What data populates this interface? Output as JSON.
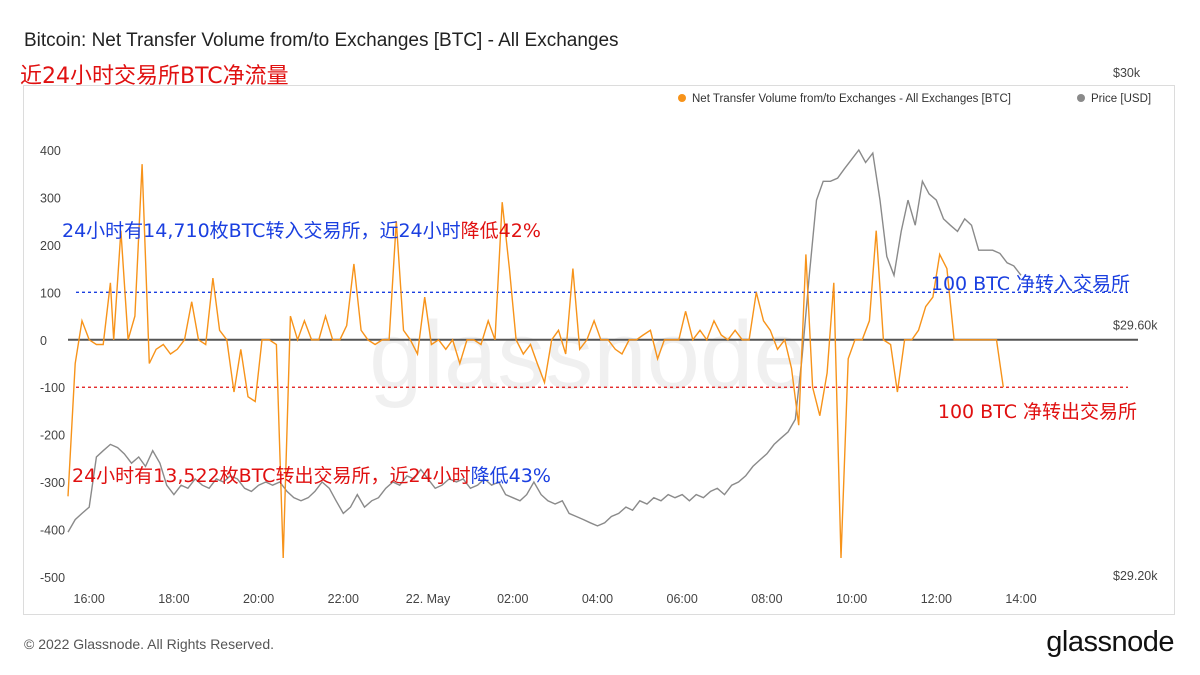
{
  "header": {
    "title": "Bitcoin: Net Transfer Volume from/to Exchanges [BTC] - All Exchanges",
    "subtitle": "近24小时交易所BTC净流量"
  },
  "footer": {
    "copyright": "© 2022 Glassnode. All Rights Reserved.",
    "brand": "glassnode"
  },
  "watermark": "glassnode",
  "colors": {
    "volume": "#f7931a",
    "price": "#8a8a8a",
    "zero_line": "#555555",
    "inflow_line": "#1a3fe0",
    "outflow_line": "#e01010",
    "annotation_blue": "#1a3fe0",
    "annotation_red": "#e01010"
  },
  "annotations": {
    "inflow": {
      "part1": "24小时有14,710枚BTC转入交易所，近24小时",
      "part2": "降低42%"
    },
    "outflow": {
      "part1": "24小时有13,522枚BTC转出交易所，近24小时",
      "part2": "降低43%"
    },
    "threshold_in": "100 BTC 净转入交易所",
    "threshold_out": "100 BTC 净转出交易所"
  },
  "chart_data": {
    "type": "line",
    "title": "Bitcoin: Net Transfer Volume from/to Exchanges [BTC] - All Exchanges",
    "x_tick_labels": [
      "16:00",
      "18:00",
      "20:00",
      "22:00",
      "22. May",
      "02:00",
      "04:00",
      "06:00",
      "08:00",
      "10:00",
      "12:00",
      "14:00"
    ],
    "x_tick_hours": [
      1,
      3,
      5,
      7,
      9,
      11,
      13,
      15,
      17,
      19,
      21,
      23
    ],
    "x_range_hours": [
      0.5,
      25.1
    ],
    "y_left": {
      "ticks": [
        400,
        300,
        200,
        100,
        0,
        -100,
        -200,
        -300,
        -400,
        -500
      ],
      "range": [
        -500,
        400
      ]
    },
    "y_right": {
      "ticks": [
        "$30k",
        "$29.60k",
        "$29.20k"
      ],
      "tick_values": [
        30000,
        29600,
        29200
      ],
      "range": [
        29200,
        29880
      ],
      "scale": "log"
    },
    "reference_lines": [
      {
        "name": "inflow_threshold",
        "y": 100,
        "label": "100 BTC 净转入交易所"
      },
      {
        "name": "outflow_threshold",
        "y": -100,
        "label": "100 BTC 净转出交易所"
      }
    ],
    "legend": {
      "placement": "top-right",
      "entries": [
        "Net Transfer Volume from/to Exchanges - All Exchanges [BTC]",
        "Price [USD]"
      ]
    },
    "series": [
      {
        "name": "Net Transfer Volume from/to Exchanges - All Exchanges [BTC]",
        "color": "#f7931a",
        "axis": "left",
        "points": [
          [
            0.5,
            -330
          ],
          [
            0.67,
            -50
          ],
          [
            0.83,
            40
          ],
          [
            1.0,
            0
          ],
          [
            1.17,
            -10
          ],
          [
            1.33,
            -10
          ],
          [
            1.5,
            120
          ],
          [
            1.58,
            0
          ],
          [
            1.75,
            230
          ],
          [
            1.92,
            0
          ],
          [
            2.08,
            50
          ],
          [
            2.25,
            370
          ],
          [
            2.42,
            -50
          ],
          [
            2.58,
            -20
          ],
          [
            2.75,
            -10
          ],
          [
            2.92,
            -30
          ],
          [
            3.08,
            -20
          ],
          [
            3.25,
            0
          ],
          [
            3.42,
            80
          ],
          [
            3.58,
            0
          ],
          [
            3.75,
            -10
          ],
          [
            3.92,
            130
          ],
          [
            4.08,
            20
          ],
          [
            4.25,
            0
          ],
          [
            4.42,
            -110
          ],
          [
            4.58,
            -20
          ],
          [
            4.75,
            -120
          ],
          [
            4.92,
            -130
          ],
          [
            5.08,
            0
          ],
          [
            5.25,
            0
          ],
          [
            5.42,
            -10
          ],
          [
            5.58,
            -460
          ],
          [
            5.75,
            50
          ],
          [
            5.92,
            0
          ],
          [
            6.08,
            40
          ],
          [
            6.25,
            0
          ],
          [
            6.42,
            0
          ],
          [
            6.58,
            50
          ],
          [
            6.75,
            0
          ],
          [
            6.92,
            0
          ],
          [
            7.08,
            30
          ],
          [
            7.25,
            160
          ],
          [
            7.42,
            20
          ],
          [
            7.58,
            0
          ],
          [
            7.75,
            -10
          ],
          [
            7.92,
            0
          ],
          [
            8.08,
            0
          ],
          [
            8.25,
            250
          ],
          [
            8.42,
            20
          ],
          [
            8.58,
            0
          ],
          [
            8.75,
            -30
          ],
          [
            8.92,
            90
          ],
          [
            9.08,
            -10
          ],
          [
            9.25,
            0
          ],
          [
            9.42,
            -20
          ],
          [
            9.58,
            0
          ],
          [
            9.75,
            -50
          ],
          [
            9.92,
            0
          ],
          [
            10.08,
            0
          ],
          [
            10.25,
            -10
          ],
          [
            10.42,
            40
          ],
          [
            10.58,
            0
          ],
          [
            10.75,
            290
          ],
          [
            10.92,
            150
          ],
          [
            11.08,
            0
          ],
          [
            11.25,
            -30
          ],
          [
            11.42,
            -10
          ],
          [
            11.58,
            -50
          ],
          [
            11.75,
            -90
          ],
          [
            11.92,
            0
          ],
          [
            12.08,
            20
          ],
          [
            12.25,
            -30
          ],
          [
            12.42,
            150
          ],
          [
            12.58,
            -20
          ],
          [
            12.75,
            0
          ],
          [
            12.92,
            40
          ],
          [
            13.08,
            0
          ],
          [
            13.25,
            0
          ],
          [
            13.42,
            -20
          ],
          [
            13.58,
            -30
          ],
          [
            13.75,
            0
          ],
          [
            13.92,
            0
          ],
          [
            14.08,
            10
          ],
          [
            14.25,
            20
          ],
          [
            14.42,
            -40
          ],
          [
            14.58,
            0
          ],
          [
            14.75,
            0
          ],
          [
            14.92,
            0
          ],
          [
            15.08,
            60
          ],
          [
            15.25,
            0
          ],
          [
            15.42,
            20
          ],
          [
            15.58,
            0
          ],
          [
            15.75,
            40
          ],
          [
            15.92,
            10
          ],
          [
            16.08,
            0
          ],
          [
            16.25,
            20
          ],
          [
            16.42,
            0
          ],
          [
            16.58,
            0
          ],
          [
            16.75,
            100
          ],
          [
            16.92,
            40
          ],
          [
            17.08,
            20
          ],
          [
            17.25,
            -20
          ],
          [
            17.42,
            0
          ],
          [
            17.58,
            -60
          ],
          [
            17.75,
            -180
          ],
          [
            17.92,
            180
          ],
          [
            18.08,
            -100
          ],
          [
            18.25,
            -160
          ],
          [
            18.42,
            -70
          ],
          [
            18.58,
            120
          ],
          [
            18.75,
            -460
          ],
          [
            18.92,
            -40
          ],
          [
            19.08,
            0
          ],
          [
            19.25,
            0
          ],
          [
            19.42,
            40
          ],
          [
            19.58,
            230
          ],
          [
            19.75,
            0
          ],
          [
            19.92,
            -10
          ],
          [
            20.08,
            -110
          ],
          [
            20.25,
            0
          ],
          [
            20.42,
            0
          ],
          [
            20.58,
            20
          ],
          [
            20.75,
            70
          ],
          [
            20.92,
            90
          ],
          [
            21.08,
            180
          ],
          [
            21.25,
            150
          ],
          [
            21.42,
            0
          ],
          [
            21.58,
            0
          ],
          [
            21.75,
            0
          ],
          [
            21.92,
            0
          ],
          [
            22.08,
            0
          ],
          [
            22.25,
            0
          ],
          [
            22.42,
            0
          ],
          [
            22.58,
            -100
          ]
        ]
      },
      {
        "name": "Price [USD]",
        "color": "#8a8a8a",
        "axis": "right",
        "points": [
          [
            0.5,
            29270
          ],
          [
            0.67,
            29290
          ],
          [
            0.83,
            29300
          ],
          [
            1.0,
            29310
          ],
          [
            1.17,
            29390
          ],
          [
            1.33,
            29400
          ],
          [
            1.5,
            29410
          ],
          [
            1.67,
            29405
          ],
          [
            1.83,
            29395
          ],
          [
            2.0,
            29380
          ],
          [
            2.17,
            29390
          ],
          [
            2.33,
            29375
          ],
          [
            2.5,
            29400
          ],
          [
            2.67,
            29380
          ],
          [
            2.83,
            29345
          ],
          [
            3.0,
            29330
          ],
          [
            3.17,
            29345
          ],
          [
            3.33,
            29340
          ],
          [
            3.5,
            29355
          ],
          [
            3.67,
            29345
          ],
          [
            3.83,
            29340
          ],
          [
            4.0,
            29355
          ],
          [
            4.17,
            29350
          ],
          [
            4.33,
            29360
          ],
          [
            4.5,
            29355
          ],
          [
            4.67,
            29340
          ],
          [
            4.83,
            29335
          ],
          [
            5.0,
            29345
          ],
          [
            5.17,
            29350
          ],
          [
            5.33,
            29345
          ],
          [
            5.5,
            29350
          ],
          [
            5.67,
            29335
          ],
          [
            5.83,
            29325
          ],
          [
            6.0,
            29320
          ],
          [
            6.17,
            29325
          ],
          [
            6.33,
            29335
          ],
          [
            6.5,
            29350
          ],
          [
            6.67,
            29340
          ],
          [
            6.83,
            29320
          ],
          [
            7.0,
            29300
          ],
          [
            7.17,
            29310
          ],
          [
            7.33,
            29330
          ],
          [
            7.5,
            29310
          ],
          [
            7.67,
            29320
          ],
          [
            7.83,
            29325
          ],
          [
            8.0,
            29340
          ],
          [
            8.17,
            29350
          ],
          [
            8.33,
            29345
          ],
          [
            8.5,
            29360
          ],
          [
            8.67,
            29355
          ],
          [
            8.83,
            29370
          ],
          [
            9.0,
            29355
          ],
          [
            9.17,
            29340
          ],
          [
            9.33,
            29345
          ],
          [
            9.5,
            29355
          ],
          [
            9.67,
            29350
          ],
          [
            9.83,
            29355
          ],
          [
            10.0,
            29340
          ],
          [
            10.17,
            29345
          ],
          [
            10.33,
            29355
          ],
          [
            10.5,
            29345
          ],
          [
            10.67,
            29350
          ],
          [
            10.83,
            29330
          ],
          [
            11.0,
            29325
          ],
          [
            11.17,
            29320
          ],
          [
            11.33,
            29330
          ],
          [
            11.5,
            29350
          ],
          [
            11.67,
            29330
          ],
          [
            11.83,
            29320
          ],
          [
            12.0,
            29315
          ],
          [
            12.17,
            29320
          ],
          [
            12.33,
            29300
          ],
          [
            12.5,
            29295
          ],
          [
            12.67,
            29290
          ],
          [
            12.83,
            29285
          ],
          [
            13.0,
            29280
          ],
          [
            13.17,
            29285
          ],
          [
            13.33,
            29295
          ],
          [
            13.5,
            29300
          ],
          [
            13.67,
            29310
          ],
          [
            13.83,
            29305
          ],
          [
            14.0,
            29320
          ],
          [
            14.17,
            29315
          ],
          [
            14.33,
            29325
          ],
          [
            14.5,
            29320
          ],
          [
            14.67,
            29330
          ],
          [
            14.83,
            29325
          ],
          [
            15.0,
            29330
          ],
          [
            15.17,
            29320
          ],
          [
            15.33,
            29330
          ],
          [
            15.5,
            29325
          ],
          [
            15.67,
            29335
          ],
          [
            15.83,
            29340
          ],
          [
            16.0,
            29330
          ],
          [
            16.17,
            29345
          ],
          [
            16.33,
            29350
          ],
          [
            16.5,
            29360
          ],
          [
            16.67,
            29375
          ],
          [
            16.83,
            29385
          ],
          [
            17.0,
            29395
          ],
          [
            17.17,
            29410
          ],
          [
            17.33,
            29420
          ],
          [
            17.5,
            29430
          ],
          [
            17.67,
            29450
          ],
          [
            17.83,
            29550
          ],
          [
            18.0,
            29680
          ],
          [
            18.17,
            29800
          ],
          [
            18.33,
            29830
          ],
          [
            18.5,
            29830
          ],
          [
            18.67,
            29835
          ],
          [
            18.83,
            29850
          ],
          [
            19.0,
            29865
          ],
          [
            19.17,
            29880
          ],
          [
            19.33,
            29860
          ],
          [
            19.5,
            29875
          ],
          [
            19.67,
            29800
          ],
          [
            19.83,
            29710
          ],
          [
            20.0,
            29680
          ],
          [
            20.17,
            29750
          ],
          [
            20.33,
            29800
          ],
          [
            20.5,
            29760
          ],
          [
            20.67,
            29830
          ],
          [
            20.83,
            29810
          ],
          [
            21.0,
            29800
          ],
          [
            21.17,
            29770
          ],
          [
            21.33,
            29760
          ],
          [
            21.5,
            29750
          ],
          [
            21.67,
            29770
          ],
          [
            21.83,
            29760
          ],
          [
            22.0,
            29720
          ],
          [
            22.17,
            29720
          ],
          [
            22.33,
            29720
          ],
          [
            22.5,
            29715
          ],
          [
            22.67,
            29700
          ],
          [
            22.83,
            29695
          ],
          [
            23.0,
            29680
          ]
        ]
      }
    ]
  }
}
